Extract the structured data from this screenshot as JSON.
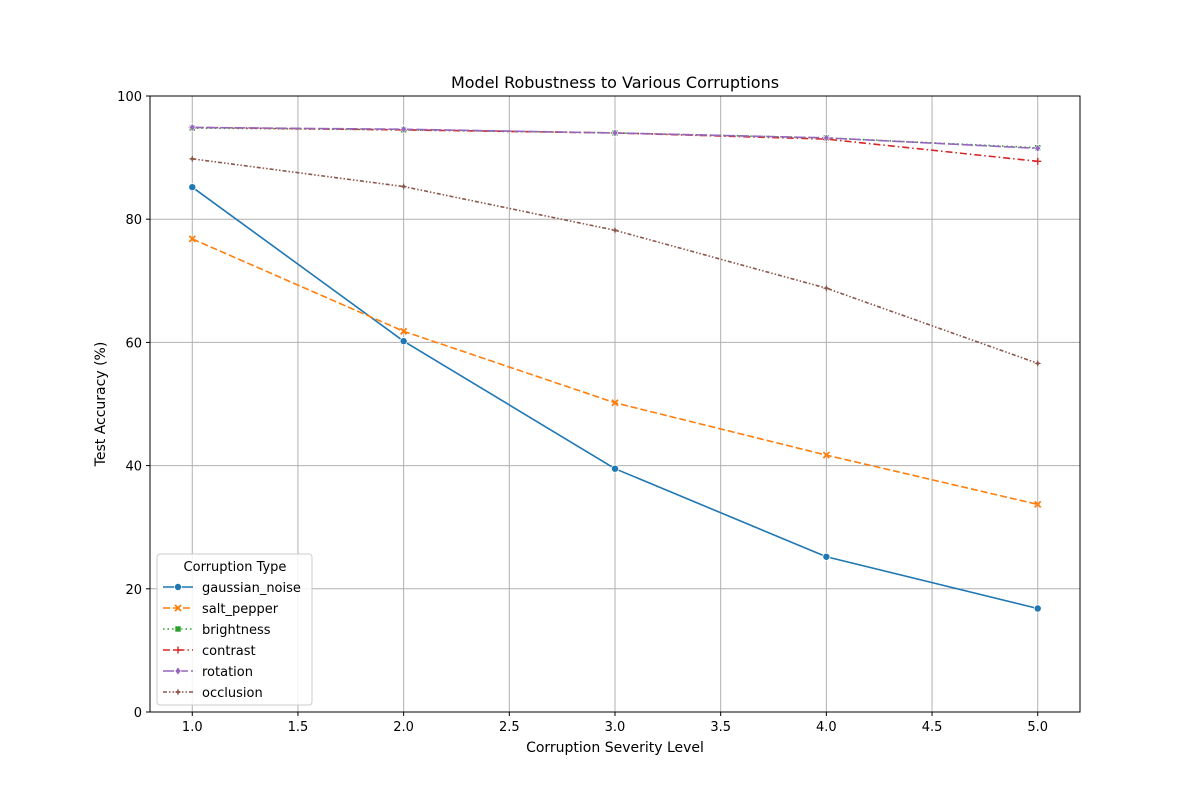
{
  "chart_data": {
    "type": "line",
    "title": "Model Robustness to Various Corruptions",
    "xlabel": "Corruption Severity Level",
    "ylabel": "Test Accuracy (%)",
    "xlim": [
      0.8,
      5.2
    ],
    "ylim": [
      0,
      100
    ],
    "xticks": [
      "1.0",
      "1.5",
      "2.0",
      "2.5",
      "3.0",
      "3.5",
      "4.0",
      "4.5",
      "5.0"
    ],
    "yticks": [
      "0",
      "20",
      "40",
      "60",
      "80",
      "100"
    ],
    "grid": true,
    "legend": {
      "title": "Corruption Type",
      "placement": "lower-left"
    },
    "x": [
      1,
      2,
      3,
      4,
      5
    ],
    "series": [
      {
        "name": "gaussian_noise",
        "values": [
          85.2,
          60.2,
          39.5,
          25.2,
          16.8
        ],
        "color": "#1f77b4",
        "dash": "solid",
        "marker": "circle"
      },
      {
        "name": "salt_pepper",
        "values": [
          76.8,
          61.8,
          50.2,
          41.7,
          33.7
        ],
        "color": "#ff7f0e",
        "dash": "dashed",
        "marker": "x"
      },
      {
        "name": "brightness",
        "values": [
          94.8,
          94.5,
          94.0,
          93.2,
          91.6
        ],
        "color": "#2ca02c",
        "dash": "dotted",
        "marker": "square"
      },
      {
        "name": "contrast",
        "values": [
          94.9,
          94.5,
          94.0,
          93.0,
          89.4
        ],
        "color": "#d62728",
        "dash": "dashdot",
        "marker": "plus"
      },
      {
        "name": "rotation",
        "values": [
          94.9,
          94.6,
          94.0,
          93.2,
          91.5
        ],
        "color": "#9467bd",
        "dash": "longdash",
        "marker": "diamond"
      },
      {
        "name": "occlusion",
        "values": [
          89.8,
          85.3,
          78.2,
          68.8,
          56.6
        ],
        "color": "#8c564b",
        "dash": "dashdotdot",
        "marker": "star"
      }
    ]
  }
}
